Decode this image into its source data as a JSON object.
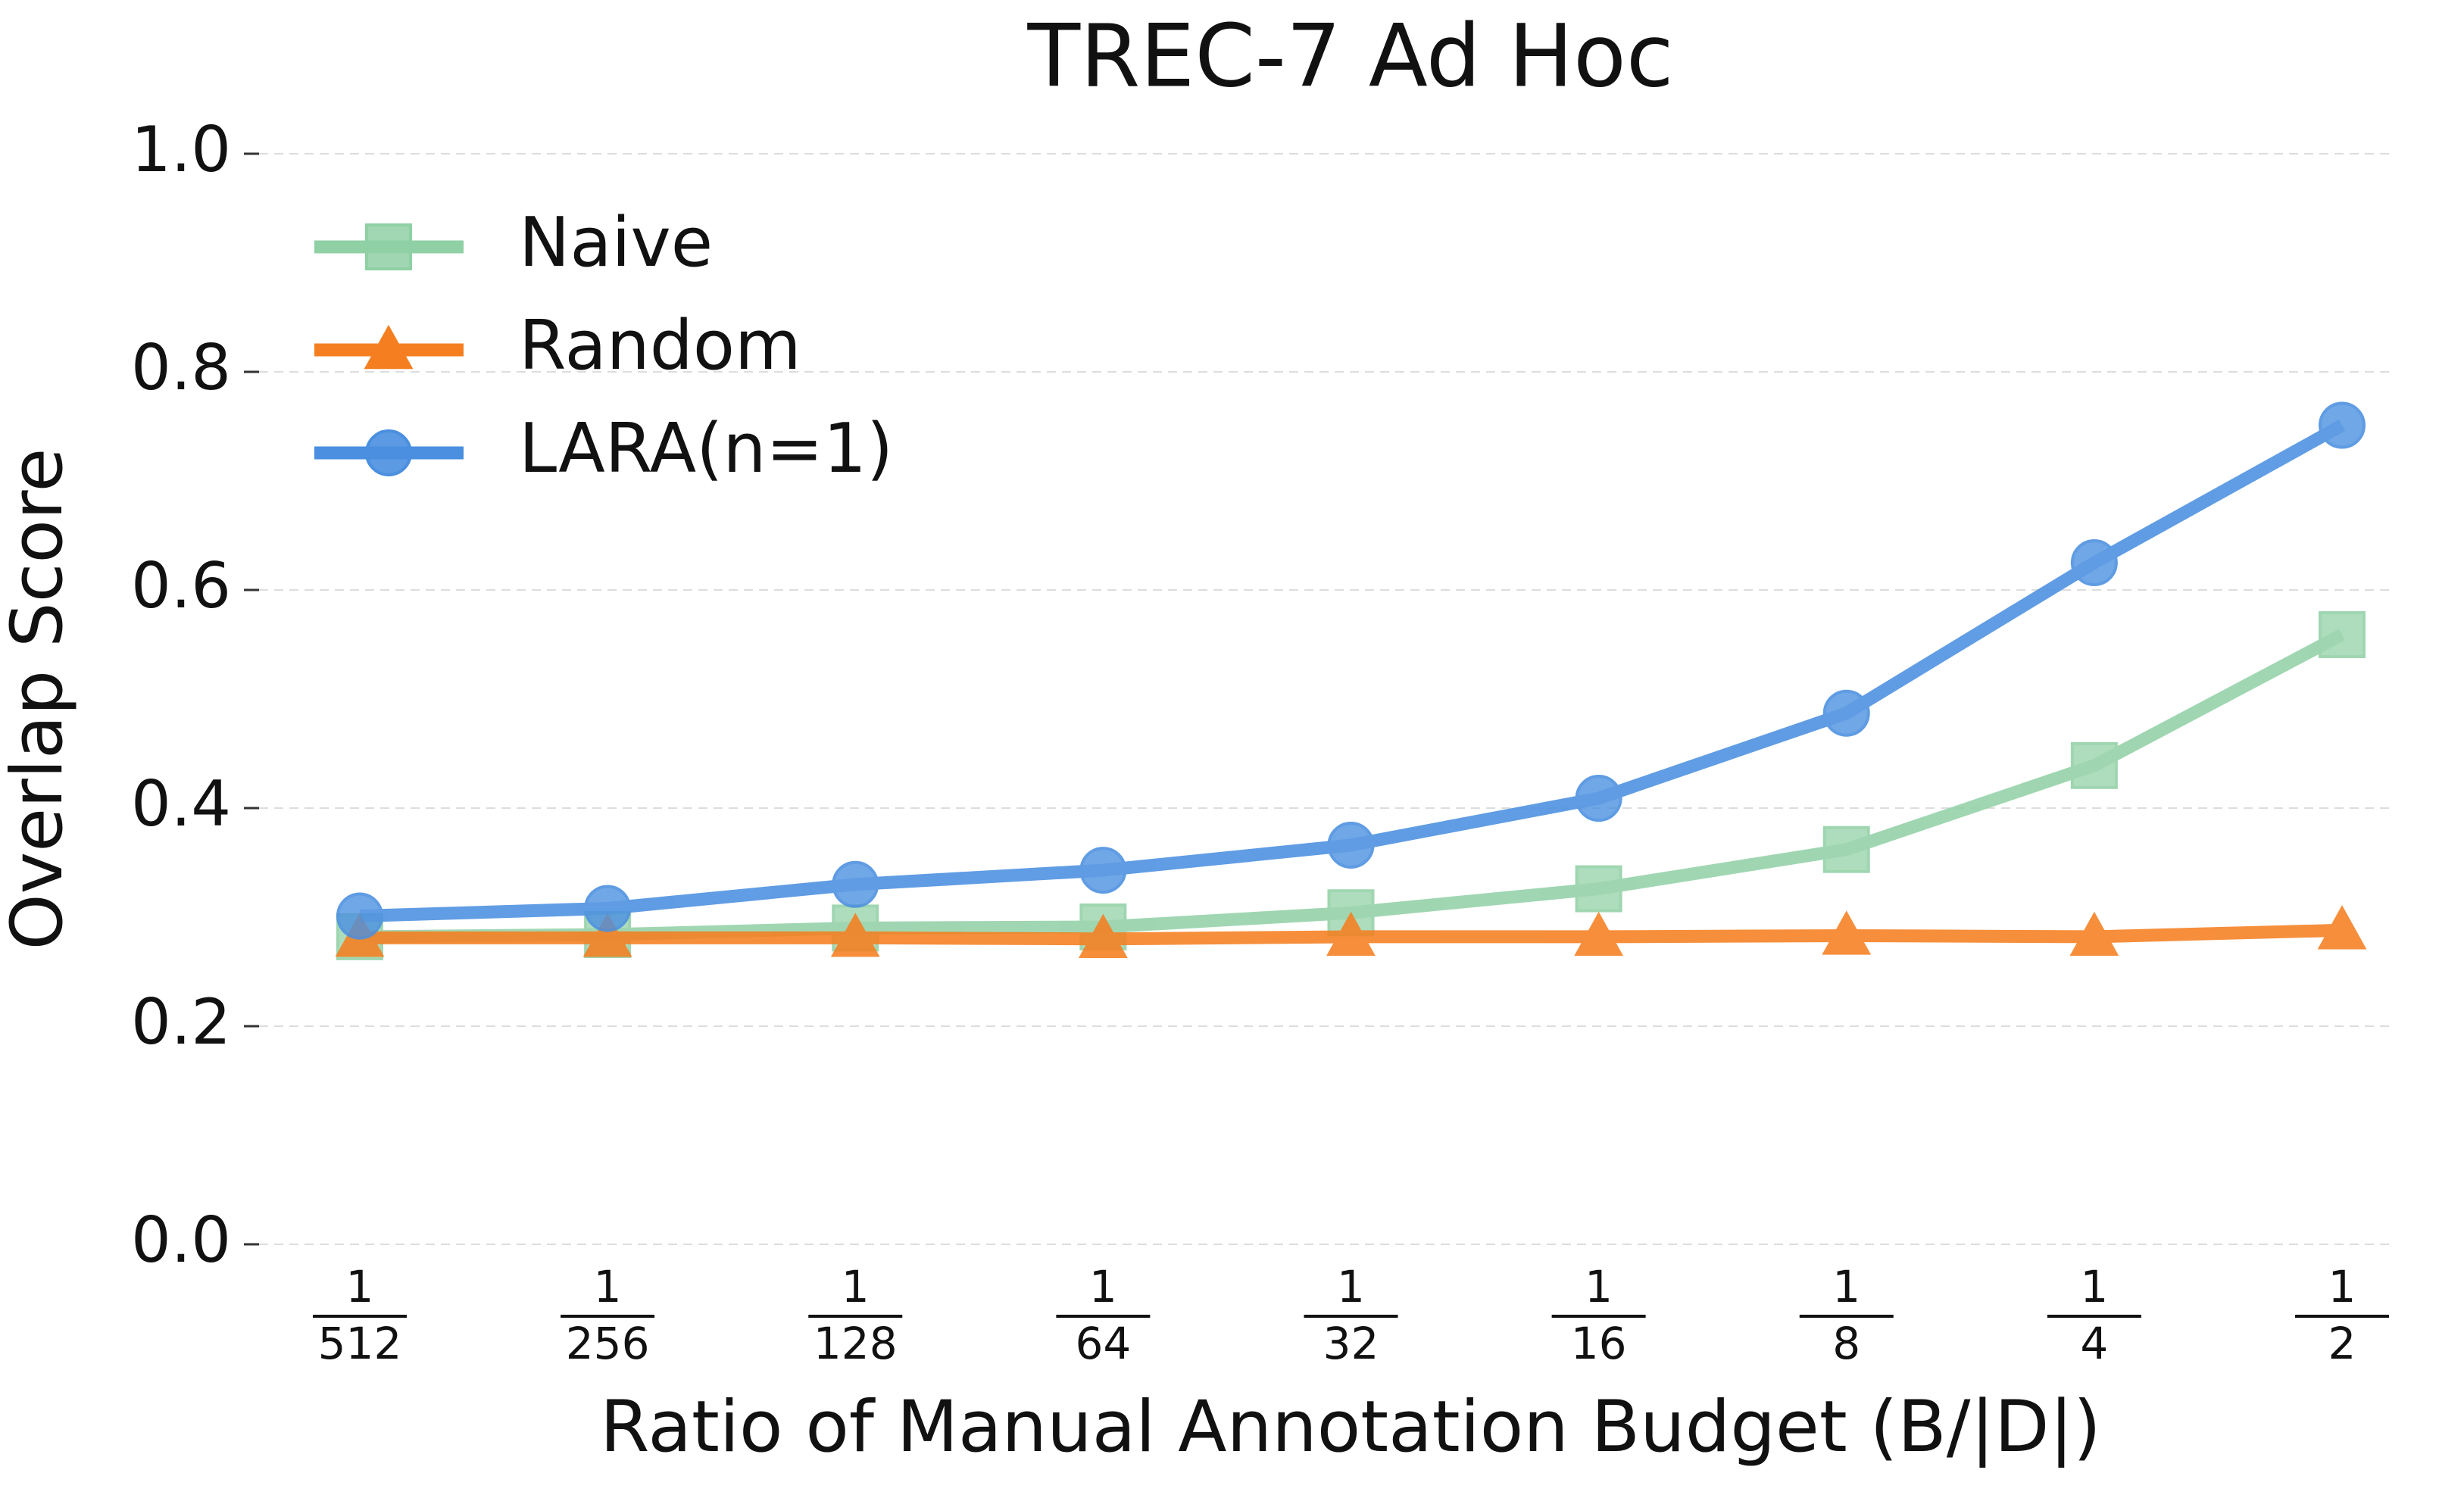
{
  "chart_data": {
    "type": "line",
    "title": "TREC-7 Ad Hoc",
    "xlabel": "Ratio of Manual Annotation Budget (B/|D|)",
    "ylabel": "Overlap Score",
    "categories": [
      {
        "numerator": "1",
        "denominator": "512"
      },
      {
        "numerator": "1",
        "denominator": "256"
      },
      {
        "numerator": "1",
        "denominator": "128"
      },
      {
        "numerator": "1",
        "denominator": "64"
      },
      {
        "numerator": "1",
        "denominator": "32"
      },
      {
        "numerator": "1",
        "denominator": "16"
      },
      {
        "numerator": "1",
        "denominator": "8"
      },
      {
        "numerator": "1",
        "denominator": "4"
      },
      {
        "numerator": "1",
        "denominator": "2"
      }
    ],
    "series": [
      {
        "name": "Naive",
        "color": "#8fd0a4",
        "marker": "square",
        "values": [
          0.282,
          0.284,
          0.29,
          0.291,
          0.304,
          0.326,
          0.362,
          0.439,
          0.559
        ]
      },
      {
        "name": "Random",
        "color": "#f57f20",
        "marker": "triangle",
        "values": [
          0.281,
          0.281,
          0.281,
          0.28,
          0.282,
          0.282,
          0.283,
          0.282,
          0.288
        ]
      },
      {
        "name": "LARA(n=1)",
        "color": "#4a8fe0",
        "marker": "circle",
        "values": [
          0.301,
          0.308,
          0.33,
          0.343,
          0.366,
          0.409,
          0.487,
          0.625,
          0.751
        ]
      }
    ],
    "ylim": [
      0,
      1
    ],
    "yticks": [
      {
        "value": 0,
        "label": "0.0"
      },
      {
        "value": 0.2,
        "label": "0.2"
      },
      {
        "value": 0.4,
        "label": "0.4"
      },
      {
        "value": 0.6,
        "label": "0.6"
      },
      {
        "value": 0.8,
        "label": "0.8"
      },
      {
        "value": 1,
        "label": "1.0"
      }
    ],
    "grid": true,
    "legend": "upper left"
  }
}
